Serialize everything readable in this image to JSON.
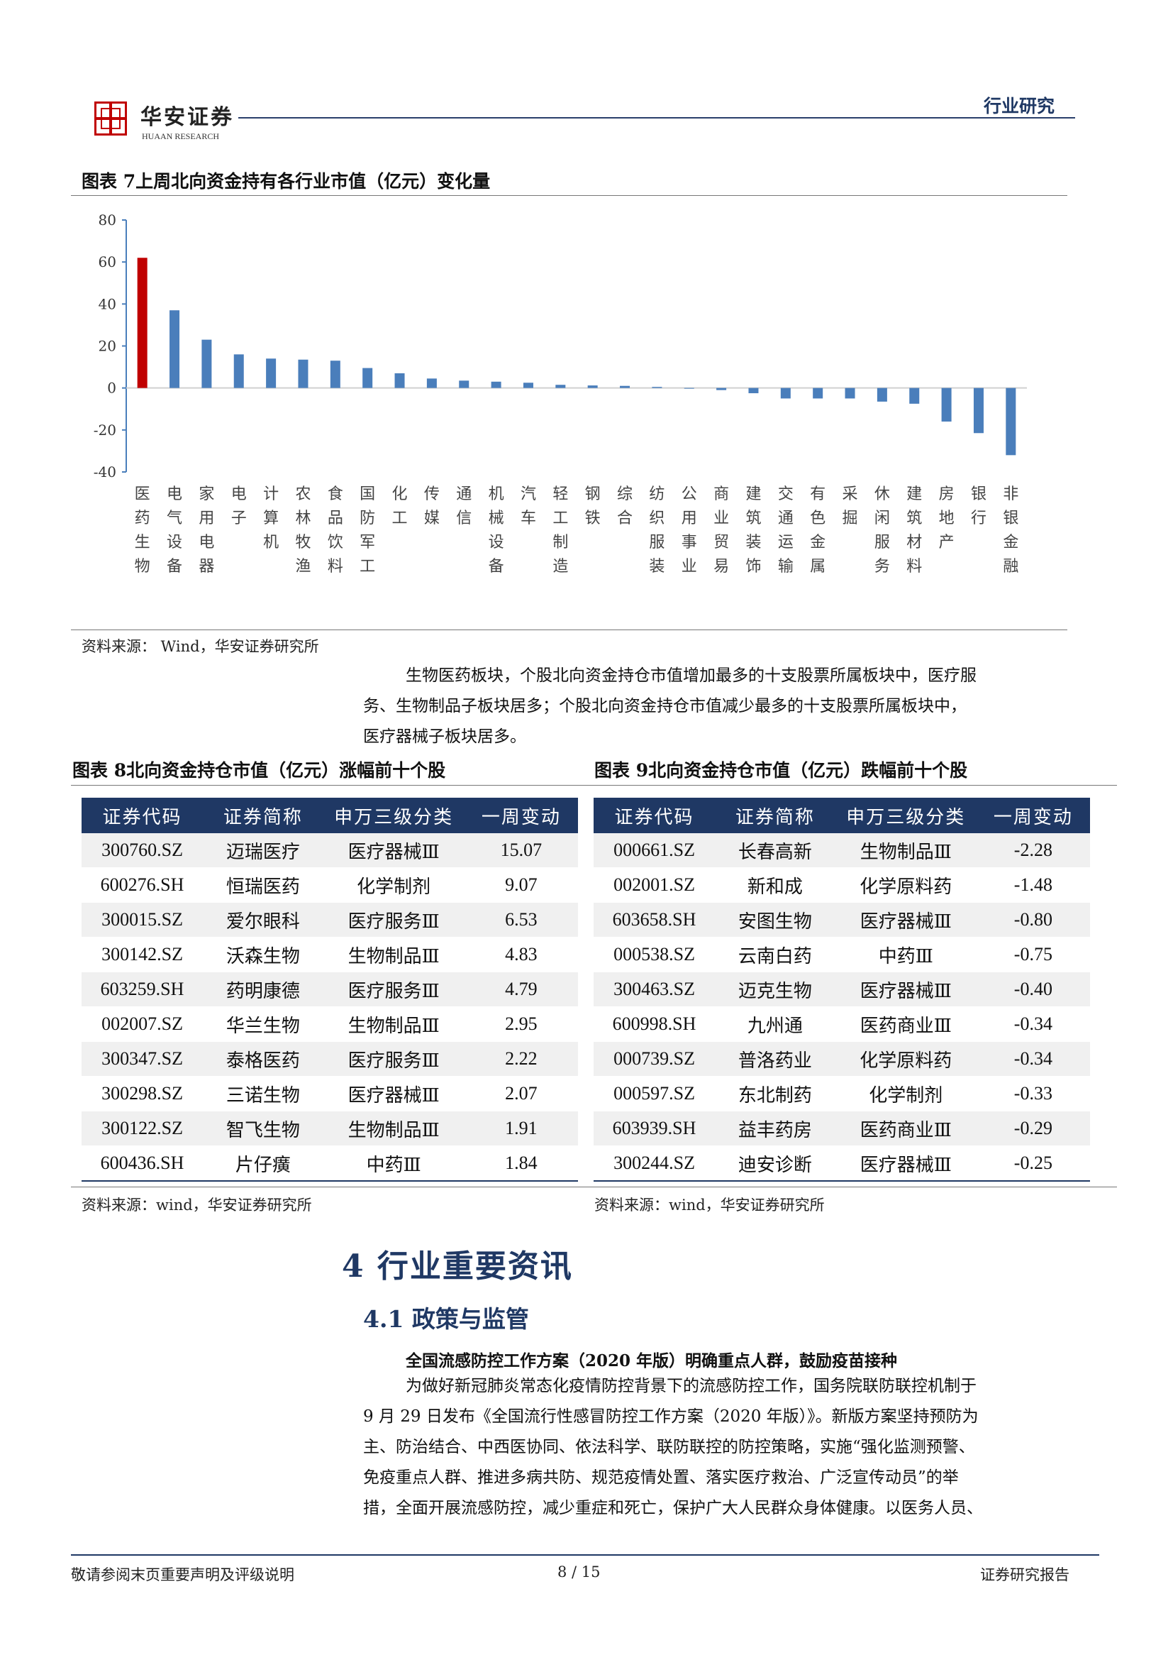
{
  "header": {
    "brand_cn": "华安证券",
    "brand_en": "HUAAN RESEARCH",
    "section": "行业研究"
  },
  "figure7": {
    "title": "图表 7上周北向资金持有各行业市值（亿元）变化量",
    "source": "资料来源：  Wind，华安证券研究所"
  },
  "chart_data": {
    "type": "bar",
    "categories": [
      "医药生物",
      "电气设备",
      "家用电器",
      "电子",
      "计算机",
      "农林牧渔",
      "食品饮料",
      "国防军工",
      "化工",
      "传媒",
      "通信",
      "机械设备",
      "汽车",
      "轻工制造",
      "钢铁",
      "综合",
      "纺织服装",
      "公用事业",
      "商业贸易",
      "建筑装饰",
      "交通运输",
      "有色金属",
      "采掘",
      "休闲服务",
      "建筑材料",
      "房地产",
      "银行",
      "非银金融"
    ],
    "values": [
      62,
      37,
      23,
      16,
      14,
      13.5,
      13,
      9.5,
      7,
      4.5,
      3.5,
      3,
      2.5,
      1.5,
      1.2,
      1,
      0.5,
      0,
      -1,
      -2.5,
      -5,
      -5,
      -5,
      -6.5,
      -7.5,
      -16,
      -21.5,
      -32
    ],
    "highlight_index": 0,
    "highlight_color": "#c00000",
    "bar_color": "#4a7ebb",
    "ylim": [
      -40,
      80
    ],
    "yticks": [
      80,
      60,
      40,
      20,
      0,
      -20,
      -40
    ],
    "xlabel": "",
    "ylabel": ""
  },
  "para1": {
    "line1": "生物医药板块，个股北向资金持仓市值增加最多的十支股票所属板块中，医疗服",
    "line2": "务、生物制品子板块居多；个股北向资金持仓市值减少最多的十支股票所属板块中，",
    "line3": "医疗器械子板块居多。"
  },
  "table8": {
    "title": "图表 8北向资金持仓市值（亿元）涨幅前十个股",
    "headers": [
      "证券代码",
      "证券简称",
      "申万三级分类",
      "一周变动"
    ],
    "rows": [
      [
        "300760.SZ",
        "迈瑞医疗",
        "医疗器械Ⅲ",
        "15.07"
      ],
      [
        "600276.SH",
        "恒瑞医药",
        "化学制剂",
        "9.07"
      ],
      [
        "300015.SZ",
        "爱尔眼科",
        "医疗服务Ⅲ",
        "6.53"
      ],
      [
        "300142.SZ",
        "沃森生物",
        "生物制品Ⅲ",
        "4.83"
      ],
      [
        "603259.SH",
        "药明康德",
        "医疗服务Ⅲ",
        "4.79"
      ],
      [
        "002007.SZ",
        "华兰生物",
        "生物制品Ⅲ",
        "2.95"
      ],
      [
        "300347.SZ",
        "泰格医药",
        "医疗服务Ⅲ",
        "2.22"
      ],
      [
        "300298.SZ",
        "三诺生物",
        "医疗器械Ⅲ",
        "2.07"
      ],
      [
        "300122.SZ",
        "智飞生物",
        "生物制品Ⅲ",
        "1.91"
      ],
      [
        "600436.SH",
        "片仔癀",
        "中药Ⅲ",
        "1.84"
      ]
    ],
    "source": "资料来源：wind，华安证券研究所"
  },
  "table9": {
    "title": "图表 9北向资金持仓市值（亿元）跌幅前十个股",
    "headers": [
      "证券代码",
      "证券简称",
      "申万三级分类",
      "一周变动"
    ],
    "rows": [
      [
        "000661.SZ",
        "长春高新",
        "生物制品Ⅲ",
        "-2.28"
      ],
      [
        "002001.SZ",
        "新和成",
        "化学原料药",
        "-1.48"
      ],
      [
        "603658.SH",
        "安图生物",
        "医疗器械Ⅲ",
        "-0.80"
      ],
      [
        "000538.SZ",
        "云南白药",
        "中药Ⅲ",
        "-0.75"
      ],
      [
        "300463.SZ",
        "迈克生物",
        "医疗器械Ⅲ",
        "-0.40"
      ],
      [
        "600998.SH",
        "九州通",
        "医药商业Ⅲ",
        "-0.34"
      ],
      [
        "000739.SZ",
        "普洛药业",
        "化学原料药",
        "-0.34"
      ],
      [
        "000597.SZ",
        "东北制药",
        "化学制剂",
        "-0.33"
      ],
      [
        "603939.SH",
        "益丰药房",
        "医药商业Ⅲ",
        "-0.29"
      ],
      [
        "300244.SZ",
        "迪安诊断",
        "医疗器械Ⅲ",
        "-0.25"
      ]
    ],
    "source": "资料来源：wind，华安证券研究所"
  },
  "section4": {
    "title": "4 行业重要资讯",
    "sub": "4.1 政策与监管",
    "news_title": "全国流感防控工作方案（2020 年版）明确重点人群，鼓励疫苗接种",
    "lines": [
      "为做好新冠肺炎常态化疫情防控背景下的流感防控工作，国务院联防联控机制于",
      "9 月 29 日发布《全国流行性感冒防控工作方案（2020 年版）》。新版方案坚持预防为",
      "主、防治结合、中西医协同、依法科学、联防联控的防控策略，实施“强化监测预警、",
      "免疫重点人群、推进多病共防、规范疫情处置、落实医疗救治、广泛宣传动员”的举",
      "措，全面开展流感防控，减少重症和死亡，保护广大人民群众身体健康。以医务人员、"
    ]
  },
  "footer": {
    "left": "敬请参阅末页重要声明及评级说明",
    "page": "8 / 15",
    "right": "证券研究报告"
  }
}
